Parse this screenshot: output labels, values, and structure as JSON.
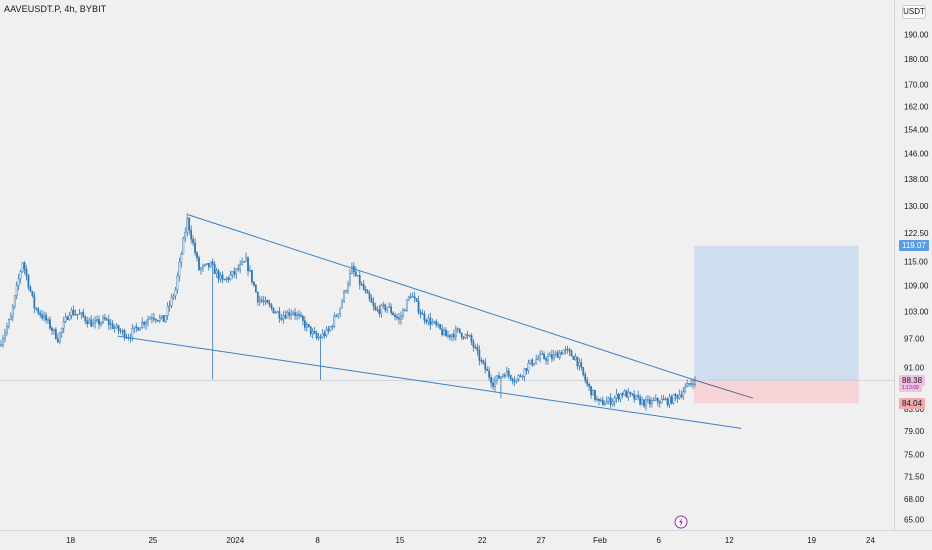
{
  "header": {
    "title": "AAVEUSDT.P, 4h, BYBIT",
    "currency": "USDT"
  },
  "labels": {
    "target": "119.07",
    "current": "88.38",
    "countdown": "1:13:09",
    "stop": "84.04"
  },
  "colors": {
    "background": "#f0f0f0",
    "candle": "#2f77b4",
    "trendline": "#3b82c4",
    "target_zone": "#c9daef",
    "stop_zone": "#f5cfd3",
    "target_label_bg": "#5a9be6",
    "current_label_bg": "#f3bfe0",
    "stop_label_bg": "#f4a8ae",
    "lightning_icon": "#9c27b0"
  },
  "chart_data": {
    "type": "candlestick",
    "symbol": "AAVEUSDT.P",
    "interval": "4h",
    "exchange": "BYBIT",
    "y_axis": {
      "scale": "log",
      "ylim": [
        63.5,
        205
      ],
      "ticks": [
        "65.00",
        "68.00",
        "71.50",
        "75.00",
        "79.00",
        "83.00",
        "91.00",
        "97.00",
        "103.00",
        "109.00",
        "115.00",
        "122.50",
        "130.00",
        "138.00",
        "146.00",
        "154.00",
        "162.00",
        "170.00",
        "180.00",
        "190.00"
      ]
    },
    "x_axis": {
      "xlim": [
        "2023-12-12",
        "2024-02-26"
      ],
      "ticks": [
        {
          "label": "18",
          "date": "2023-12-18"
        },
        {
          "label": "25",
          "date": "2023-12-25"
        },
        {
          "label": "2024",
          "date": "2024-01-01"
        },
        {
          "label": "8",
          "date": "2024-01-08"
        },
        {
          "label": "15",
          "date": "2024-01-15"
        },
        {
          "label": "22",
          "date": "2024-01-22"
        },
        {
          "label": "27",
          "date": "2024-01-27"
        },
        {
          "label": "Feb",
          "date": "2024-02-01"
        },
        {
          "label": "6",
          "date": "2024-02-06"
        },
        {
          "label": "12",
          "date": "2024-02-12"
        },
        {
          "label": "19",
          "date": "2024-02-19"
        },
        {
          "label": "24",
          "date": "2024-02-24"
        }
      ]
    },
    "price_path": [
      [
        "2023-12-12",
        95.5
      ],
      [
        "2023-12-13",
        101.5
      ],
      [
        "2023-12-14",
        115
      ],
      [
        "2023-12-15",
        104
      ],
      [
        "2023-12-16",
        101
      ],
      [
        "2023-12-17",
        97
      ],
      [
        "2023-12-18",
        103
      ],
      [
        "2023-12-19",
        102
      ],
      [
        "2023-12-20",
        100
      ],
      [
        "2023-12-21",
        101
      ],
      [
        "2023-12-22",
        99
      ],
      [
        "2023-12-23",
        97.5
      ],
      [
        "2023-12-24",
        100
      ],
      [
        "2023-12-25",
        102
      ],
      [
        "2023-12-26",
        101
      ],
      [
        "2023-12-27",
        108
      ],
      [
        "2023-12-28",
        126
      ],
      [
        "2023-12-29",
        113
      ],
      [
        "2023-12-30",
        114
      ],
      [
        "2023-12-31",
        110
      ],
      [
        "2024-01-01",
        112
      ],
      [
        "2024-01-02",
        115
      ],
      [
        "2024-01-03",
        106
      ],
      [
        "2024-01-04",
        104
      ],
      [
        "2024-01-05",
        102
      ],
      [
        "2024-01-06",
        103
      ],
      [
        "2024-01-07",
        100
      ],
      [
        "2024-01-08",
        97
      ],
      [
        "2024-01-09",
        98.5
      ],
      [
        "2024-01-10",
        104
      ],
      [
        "2024-01-11",
        113
      ],
      [
        "2024-01-12",
        108
      ],
      [
        "2024-01-13",
        103
      ],
      [
        "2024-01-14",
        104
      ],
      [
        "2024-01-15",
        101
      ],
      [
        "2024-01-16",
        107
      ],
      [
        "2024-01-17",
        102
      ],
      [
        "2024-01-18",
        100
      ],
      [
        "2024-01-19",
        97.5
      ],
      [
        "2024-01-20",
        98.5
      ],
      [
        "2024-01-21",
        97
      ],
      [
        "2024-01-22",
        92
      ],
      [
        "2024-01-23",
        88
      ],
      [
        "2024-01-24",
        90
      ],
      [
        "2024-01-25",
        88.5
      ],
      [
        "2024-01-26",
        91.5
      ],
      [
        "2024-01-27",
        93
      ],
      [
        "2024-01-28",
        93
      ],
      [
        "2024-01-29",
        94.5
      ],
      [
        "2024-01-30",
        93
      ],
      [
        "2024-01-31",
        87.5
      ],
      [
        "2024-02-01",
        84
      ],
      [
        "2024-02-02",
        84.5
      ],
      [
        "2024-02-03",
        86
      ],
      [
        "2024-02-04",
        85
      ],
      [
        "2024-02-05",
        84
      ],
      [
        "2024-02-06",
        84.5
      ],
      [
        "2024-02-07",
        84.5
      ],
      [
        "2024-02-08",
        86
      ],
      [
        "2024-02-09",
        88.4
      ]
    ],
    "last_price": 88.38,
    "trendlines": [
      {
        "from": [
          "2023-12-28",
          127.5
        ],
        "to": [
          "2024-02-09",
          88.5
        ]
      },
      {
        "from": [
          "2023-12-22",
          97.5
        ],
        "to": [
          "2024-02-13",
          79.5
        ]
      },
      {
        "from": [
          "2024-02-09",
          88.5
        ],
        "to": [
          "2024-02-14",
          85
        ]
      }
    ],
    "position": {
      "type": "long",
      "start": "2024-02-09",
      "end": "2024-02-23",
      "entry": 88.38,
      "target": 119.07,
      "stop": 84.04
    },
    "grid": false,
    "legend": "none"
  }
}
